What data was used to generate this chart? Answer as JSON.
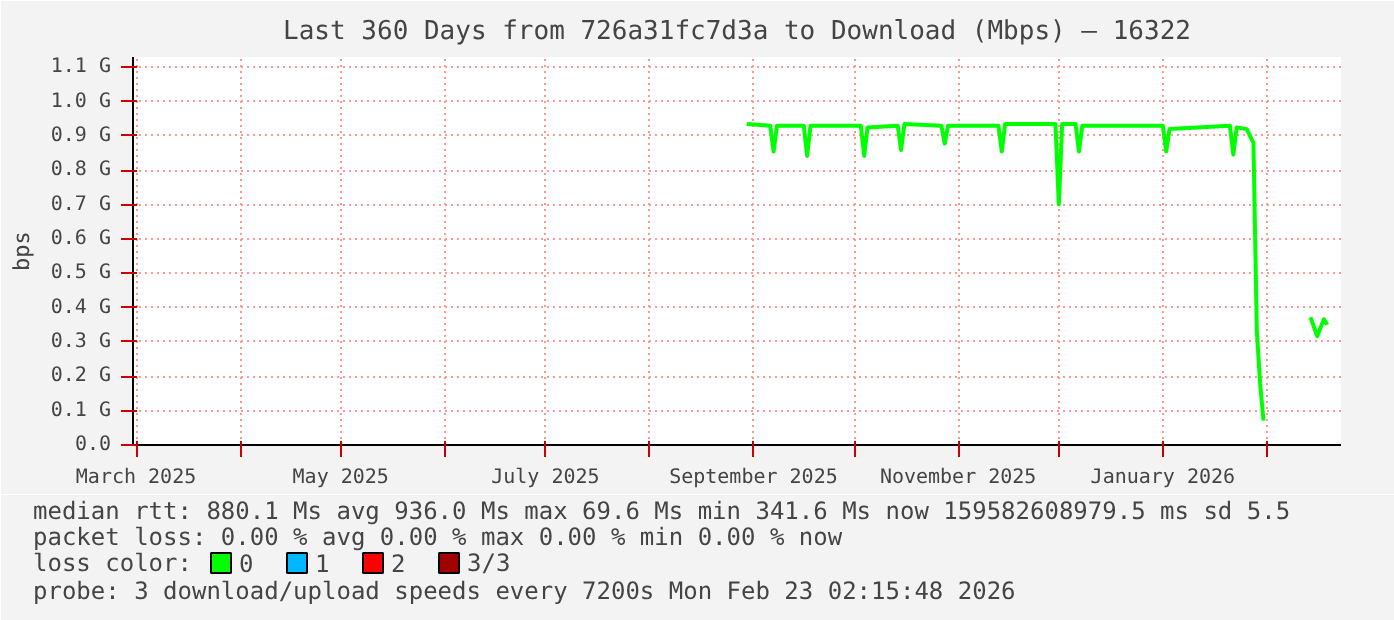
{
  "chart_data": {
    "type": "line",
    "title": "Last 360 Days from 726a31fc7d3a to Download (Mbps) — 16322",
    "ylabel": "bps",
    "xlim": [
      "2025-02-28T02:15",
      "2026-02-23T02:15"
    ],
    "ylim": [
      0,
      1.13
    ],
    "xticks": [
      {
        "value": "2025-03-01",
        "label": "March 2025"
      },
      {
        "value": "2025-04-01",
        "label": null
      },
      {
        "value": "2025-05-01",
        "label": "May 2025"
      },
      {
        "value": "2025-06-01",
        "label": null
      },
      {
        "value": "2025-07-01",
        "label": "July 2025"
      },
      {
        "value": "2025-08-01",
        "label": null
      },
      {
        "value": "2025-09-01",
        "label": "September 2025"
      },
      {
        "value": "2025-10-01",
        "label": null
      },
      {
        "value": "2025-11-01",
        "label": "November 2025"
      },
      {
        "value": "2025-12-01",
        "label": null
      },
      {
        "value": "2026-01-01",
        "label": "January 2026"
      },
      {
        "value": "2026-02-01",
        "label": null
      }
    ],
    "yticks": [
      {
        "value": 0,
        "label": "0.0"
      },
      {
        "value": 0.1,
        "label": "0.1 G"
      },
      {
        "value": 0.2,
        "label": "0.2 G"
      },
      {
        "value": 0.3,
        "label": "0.3 G"
      },
      {
        "value": 0.4,
        "label": "0.4 G"
      },
      {
        "value": 0.5,
        "label": "0.5 G"
      },
      {
        "value": 0.6,
        "label": "0.6 G"
      },
      {
        "value": 0.7,
        "label": "0.7 G"
      },
      {
        "value": 0.8,
        "label": "0.8 G"
      },
      {
        "value": 0.9,
        "label": "0.9 G"
      },
      {
        "value": 1.0,
        "label": "1.0 G"
      },
      {
        "value": 1.1,
        "label": "1.1 G"
      }
    ],
    "grid": true,
    "legend": "bottom left",
    "legend_title": "loss color:",
    "series": [
      {
        "name": "0",
        "color": "#00ff00",
        "x": [
          "2025-08-30",
          "2025-09-06",
          "2025-09-07",
          "2025-09-08",
          "2025-09-16",
          "2025-09-17",
          "2025-09-18",
          "2025-10-03",
          "2025-10-04",
          "2025-10-05",
          "2025-10-14",
          "2025-10-15",
          "2025-10-16",
          "2025-10-27",
          "2025-10-28",
          "2025-10-29",
          "2025-11-13",
          "2025-11-14",
          "2025-11-15",
          "2025-11-30",
          "2025-12-01",
          "2025-12-02",
          "2025-12-06",
          "2025-12-07",
          "2025-12-08",
          "2026-01-01",
          "2026-01-02",
          "2026-01-03",
          "2026-01-21",
          "2026-01-22",
          "2026-01-23",
          "2026-01-26",
          "2026-01-28",
          "2026-01-29",
          "2026-01-30",
          "2026-01-31",
          "2026-02-07",
          "2026-02-14",
          "2026-02-16",
          "2026-02-18",
          "2026-02-19"
        ],
        "values": [
          0.935,
          0.93,
          0.855,
          0.93,
          0.93,
          0.842,
          0.93,
          0.93,
          0.842,
          0.925,
          0.93,
          0.859,
          0.935,
          0.93,
          0.878,
          0.93,
          0.93,
          0.855,
          0.935,
          0.935,
          0.701,
          0.935,
          0.935,
          0.855,
          0.93,
          0.93,
          0.855,
          0.92,
          0.93,
          0.846,
          0.925,
          0.92,
          0.88,
          0.334,
          0.178,
          0.071,
          null,
          0.372,
          0.317,
          0.366,
          0.35
        ]
      },
      {
        "name": "1",
        "color": "#00b8ff"
      },
      {
        "name": "2",
        "color": "#ff0000"
      },
      {
        "name": "3/3",
        "color": "#a00000"
      }
    ],
    "annotations": [
      "median rtt:  880.1 Ms avg   936.0 Ms max   69.6 Ms min   341.6 Ms now   159582608979.5 ms sd   5.5",
      "packet loss: 0.00 % avg   0.00 % max   0.00 % min   0.00 % now",
      "probe:       3 download/upload speeds every 7200s   Mon Feb 23 02:15:48 2026"
    ]
  }
}
